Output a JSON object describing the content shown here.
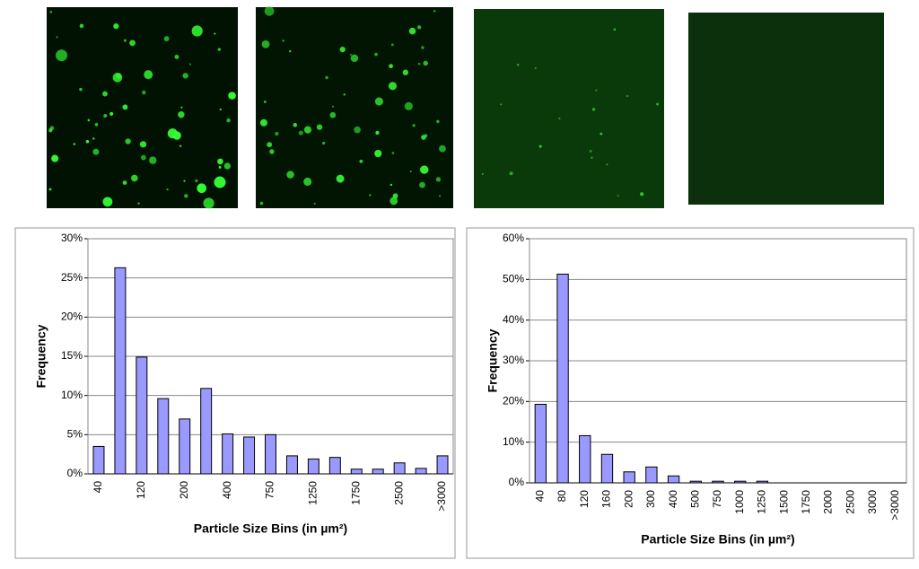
{
  "chart_data": [
    {
      "type": "bar",
      "y_label": "Frequency",
      "x_label": "Particle Size Bins (in µm²)",
      "color": "#9999ff",
      "grid": true,
      "categories": [
        "40",
        null,
        "120",
        null,
        "200",
        null,
        "400",
        null,
        "750",
        null,
        "1250",
        null,
        "1750",
        null,
        "2500",
        null,
        ">3000"
      ],
      "values": [
        3.5,
        26.3,
        14.9,
        9.6,
        7.0,
        10.9,
        5.1,
        4.7,
        5.0,
        2.3,
        1.9,
        2.1,
        0.6,
        0.6,
        1.4,
        0.7,
        2.3
      ],
      "ylim": [
        0,
        30
      ],
      "yticks": [
        {
          "value": 0,
          "label": "0%"
        },
        {
          "value": 5,
          "label": "5%"
        },
        {
          "value": 10,
          "label": "10%"
        },
        {
          "value": 15,
          "label": "15%"
        },
        {
          "value": 20,
          "label": "20%"
        },
        {
          "value": 25,
          "label": "25%"
        },
        {
          "value": 30,
          "label": "30%"
        }
      ]
    },
    {
      "type": "bar",
      "y_label": "Frequency",
      "x_label": "Particle Size Bins (in µm²)",
      "color": "#9999ff",
      "grid": true,
      "categories": [
        "40",
        "80",
        "120",
        "160",
        "200",
        "300",
        "400",
        "500",
        "750",
        "1000",
        "1250",
        "1500",
        "1750",
        "2000",
        "2500",
        "3000",
        ">3000"
      ],
      "values": [
        19.3,
        51.3,
        11.6,
        7.0,
        2.7,
        3.9,
        1.7,
        0.4,
        0.4,
        0.4,
        0.4,
        0,
        0,
        0,
        0,
        0,
        0
      ],
      "ylim": [
        0,
        60
      ],
      "yticks": [
        {
          "value": 0,
          "label": "0%"
        },
        {
          "value": 10,
          "label": "10%"
        },
        {
          "value": 20,
          "label": "20%"
        },
        {
          "value": 30,
          "label": "30%"
        },
        {
          "value": 40,
          "label": "40%"
        },
        {
          "value": 50,
          "label": "50%"
        },
        {
          "value": 60,
          "label": "60%"
        }
      ]
    }
  ]
}
